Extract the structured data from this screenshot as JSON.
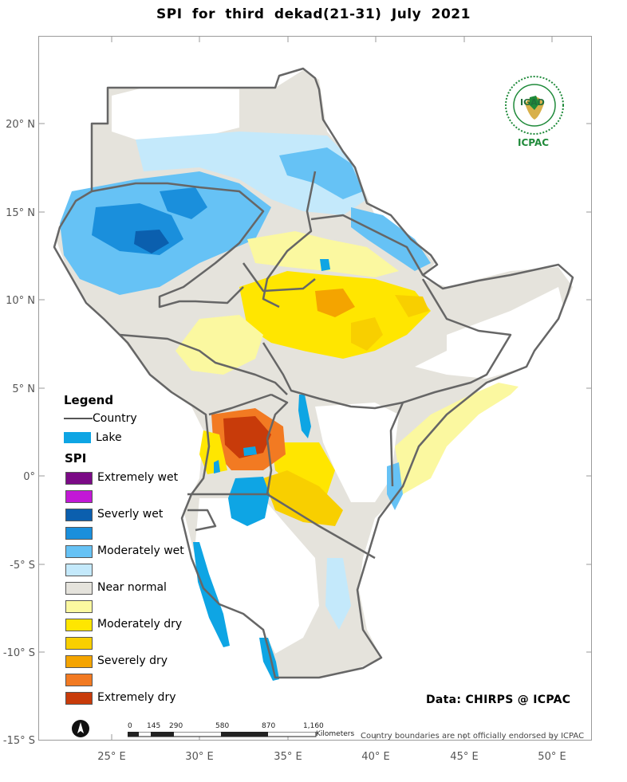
{
  "title": "SPI  for  third  dekad(21-31)  July 2021",
  "axes": {
    "lat_labels": [
      "20° N",
      "15° N",
      "10° N",
      "5° N",
      "0°",
      "-5° S",
      "-10° S",
      "-15° S"
    ],
    "lon_labels": [
      "25° E",
      "30° E",
      "35° E",
      "40° E",
      "45° E",
      "50° E"
    ]
  },
  "legend": {
    "title": "Legend",
    "country_label": "Country",
    "lake_label": "Lake",
    "spi_title": "SPI",
    "classes": [
      {
        "label": "Extremely wet",
        "color": "#7b0a86"
      },
      {
        "label": "",
        "color": "#c218d6"
      },
      {
        "label": "Severly wet",
        "color": "#0b5fae"
      },
      {
        "label": "",
        "color": "#1a8fdc"
      },
      {
        "label": "Moderately wet",
        "color": "#66c2f5"
      },
      {
        "label": "",
        "color": "#c4e9fb"
      },
      {
        "label": "Near normal",
        "color": "#e5e3dc"
      },
      {
        "label": "",
        "color": "#fbf8a0"
      },
      {
        "label": "Moderately dry",
        "color": "#ffe600"
      },
      {
        "label": "",
        "color": "#f8cf00"
      },
      {
        "label": "Severely dry",
        "color": "#f4a400"
      },
      {
        "label": "",
        "color": "#f27a22"
      },
      {
        "label": "Extremely dry",
        "color": "#c83b0a"
      }
    ]
  },
  "credit": "Data: CHIRPS @ ICPAC",
  "disclaimer": "Country boundaries are not officially endorsed by ICPAC",
  "scale_bar": {
    "labels": [
      "0",
      "145",
      "290",
      "580",
      "870",
      "1,160"
    ],
    "unit": "Kilometers"
  },
  "logo": {
    "acronym_top": "IGAD",
    "acronym_bottom": "ICPAC"
  },
  "colors": {
    "border": "#666666",
    "lake": "#0ea5e4",
    "frame": "#9a9a9a"
  }
}
